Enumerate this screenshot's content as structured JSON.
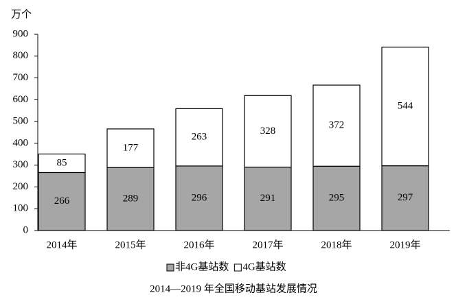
{
  "chart_data": {
    "type": "stacked_bar",
    "title": "2014—2019 年全国移动基站发展情况",
    "y_axis_label": "万个",
    "categories": [
      "2014年",
      "2015年",
      "2016年",
      "2017年",
      "2018年",
      "2019年"
    ],
    "series": [
      {
        "name": "非4G基站数",
        "color": "#a6a6a6",
        "values": [
          266,
          289,
          296,
          291,
          295,
          297
        ]
      },
      {
        "name": "4G基站数",
        "color": "#ffffff",
        "values": [
          85,
          177,
          263,
          328,
          372,
          544
        ]
      }
    ],
    "ylim": [
      0,
      900
    ],
    "yticks": [
      0,
      100,
      200,
      300,
      400,
      500,
      600,
      700,
      800,
      900
    ],
    "grid": false,
    "legend": "bottom"
  }
}
